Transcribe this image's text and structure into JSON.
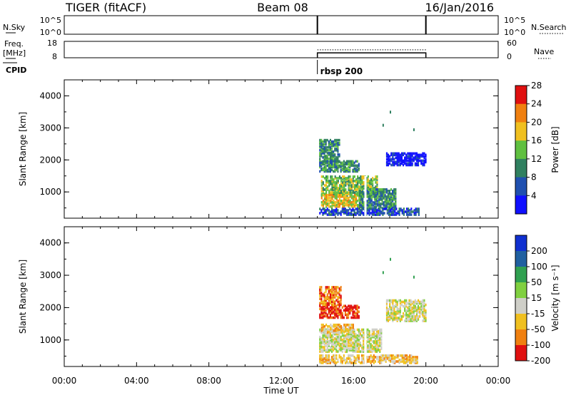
{
  "header": {
    "title": "TIGER (fitACF)",
    "beam": "Beam 08",
    "date": "16/Jan/2016"
  },
  "sky_panel": {
    "left_label": "N.Sky",
    "right_label": "N.Search",
    "ticks": [
      "10^5",
      "10^0"
    ],
    "marker_hours": [
      14.0,
      20.0
    ]
  },
  "freq_panel": {
    "left_label_1": "Freq.",
    "left_label_2": "[MHz]",
    "right_label": "Nave",
    "left_ticks": [
      "18",
      "8"
    ],
    "right_ticks": [
      "60",
      "0"
    ],
    "freq_segment": {
      "start_hour": 14.0,
      "end_hour": 20.0,
      "mhz": 11
    },
    "nave_segment": {
      "start_hour": 14.0,
      "end_hour": 20.0,
      "value": 29
    }
  },
  "cpid": {
    "label": "CPID",
    "program": "rbsp 200",
    "start_hour": 14.0
  },
  "chart_data": [
    {
      "type": "heatmap",
      "name": "power",
      "xlabel": "",
      "ylabel": "Slant Range [km]",
      "xlim": [
        0,
        24
      ],
      "ylim": [
        180,
        4500
      ],
      "yticks": [
        "1000",
        "2000",
        "3000",
        "4000"
      ],
      "colorbar": {
        "label": "Power [dB]",
        "ticks": [
          "4",
          "8",
          "12",
          "16",
          "20",
          "24",
          "28"
        ],
        "colors": [
          "#1010ff",
          "#2050b0",
          "#308060",
          "#60c040",
          "#f0c020",
          "#f08010",
          "#e01010"
        ]
      },
      "regions": [
        {
          "x": [
            14.1,
            15.2
          ],
          "y": [
            1900,
            2600
          ],
          "level": 3
        },
        {
          "x": [
            14.1,
            16.3
          ],
          "y": [
            1600,
            1950
          ],
          "level": 3
        },
        {
          "x": [
            14.2,
            17.3
          ],
          "y": [
            850,
            1450
          ],
          "level": 4
        },
        {
          "x": [
            14.2,
            16.4
          ],
          "y": [
            500,
            900
          ],
          "level": 5
        },
        {
          "x": [
            16.3,
            18.3
          ],
          "y": [
            450,
            1050
          ],
          "level": 3
        },
        {
          "x": [
            17.8,
            20.0
          ],
          "y": [
            1800,
            2200
          ],
          "level": 1
        },
        {
          "x": [
            14.1,
            19.6
          ],
          "y": [
            250,
            450
          ],
          "level": 2
        }
      ]
    },
    {
      "type": "heatmap",
      "name": "velocity",
      "xlabel": "Time UT",
      "ylabel": "Slant Range [km]",
      "xlim": [
        0,
        24
      ],
      "ylim": [
        180,
        4500
      ],
      "xticks": [
        "00:00",
        "04:00",
        "08:00",
        "12:00",
        "16:00",
        "20:00",
        "00:00"
      ],
      "yticks": [
        "1000",
        "2000",
        "3000",
        "4000"
      ],
      "colorbar": {
        "label": "Velocity [m s⁻¹]",
        "ticks": [
          "200",
          "100",
          "50",
          "15",
          "-15",
          "-50",
          "-100",
          "-200"
        ],
        "colors": [
          "#1030d0",
          "#2060a0",
          "#30a050",
          "#80d040",
          "#cfcfc8",
          "#f0c020",
          "#f08010",
          "#e01010"
        ]
      },
      "regions": [
        {
          "x": [
            14.1,
            16.3
          ],
          "y": [
            1650,
            2050
          ],
          "level": 8
        },
        {
          "x": [
            14.1,
            15.3
          ],
          "y": [
            2050,
            2600
          ],
          "level": 7
        },
        {
          "x": [
            14.1,
            17.5
          ],
          "y": [
            600,
            1300
          ],
          "level": 5
        },
        {
          "x": [
            14.2,
            16.0
          ],
          "y": [
            1200,
            1450
          ],
          "level": 6
        },
        {
          "x": [
            17.8,
            20.0
          ],
          "y": [
            1550,
            2200
          ],
          "level": 5
        },
        {
          "x": [
            14.1,
            19.5
          ],
          "y": [
            250,
            500
          ],
          "level": 6
        }
      ]
    }
  ]
}
